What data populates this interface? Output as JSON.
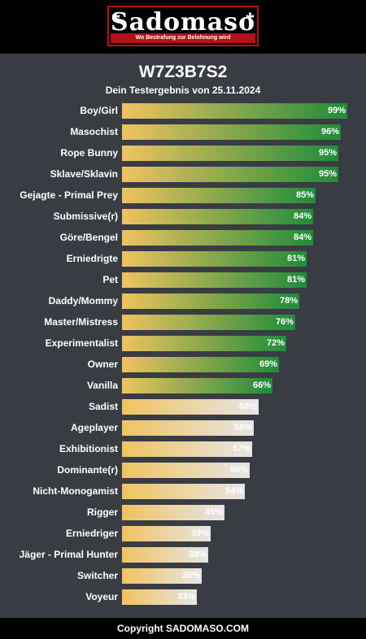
{
  "header": {
    "logo_text": "Sadomaso",
    "tagline": "Wo Bestrafung zur Belohnung wird",
    "logo_color": "#b3121a"
  },
  "title": "W7Z3B7S2",
  "subtitle": "Dein Testergebnis von 25.11.2024",
  "footer": "Copyright SADOMASO.COM",
  "colors": {
    "panel_bg": "#393c43",
    "bar_start": "#f0c35f",
    "high_end": "#1e8c3a",
    "low_end": "#e6e6e6"
  },
  "chart_data": {
    "type": "bar",
    "orientation": "horizontal",
    "xlim": [
      0,
      100
    ],
    "unit": "%",
    "categories": [
      "Boy/Girl",
      "Masochist",
      "Rope Bunny",
      "Sklave/Sklavin",
      "Gejagte - Primal Prey",
      "Submissive(r)",
      "Göre/Bengel",
      "Erniedrigte",
      "Pet",
      "Daddy/Mommy",
      "Master/Mistress",
      "Experimentalist",
      "Owner",
      "Vanilla",
      "Sadist",
      "Ageplayer",
      "Exhibitionist",
      "Dominante(r)",
      "Nicht-Monogamist",
      "Rigger",
      "Erniedriger",
      "Jäger - Primal Hunter",
      "Switcher",
      "Voyeur"
    ],
    "values": [
      99,
      96,
      95,
      95,
      85,
      84,
      84,
      81,
      81,
      78,
      76,
      72,
      69,
      66,
      60,
      58,
      57,
      56,
      54,
      45,
      39,
      38,
      35,
      33
    ],
    "value_labels": [
      "99%",
      "96%",
      "95%",
      "95%",
      "85%",
      "84%",
      "84%",
      "81%",
      "81%",
      "78%",
      "76%",
      "72%",
      "69%",
      "66%",
      "60%",
      "58%",
      "57%",
      "56%",
      "54%",
      "45%",
      "39%",
      "38%",
      "35%",
      "33%"
    ],
    "high_threshold_count": 14
  }
}
